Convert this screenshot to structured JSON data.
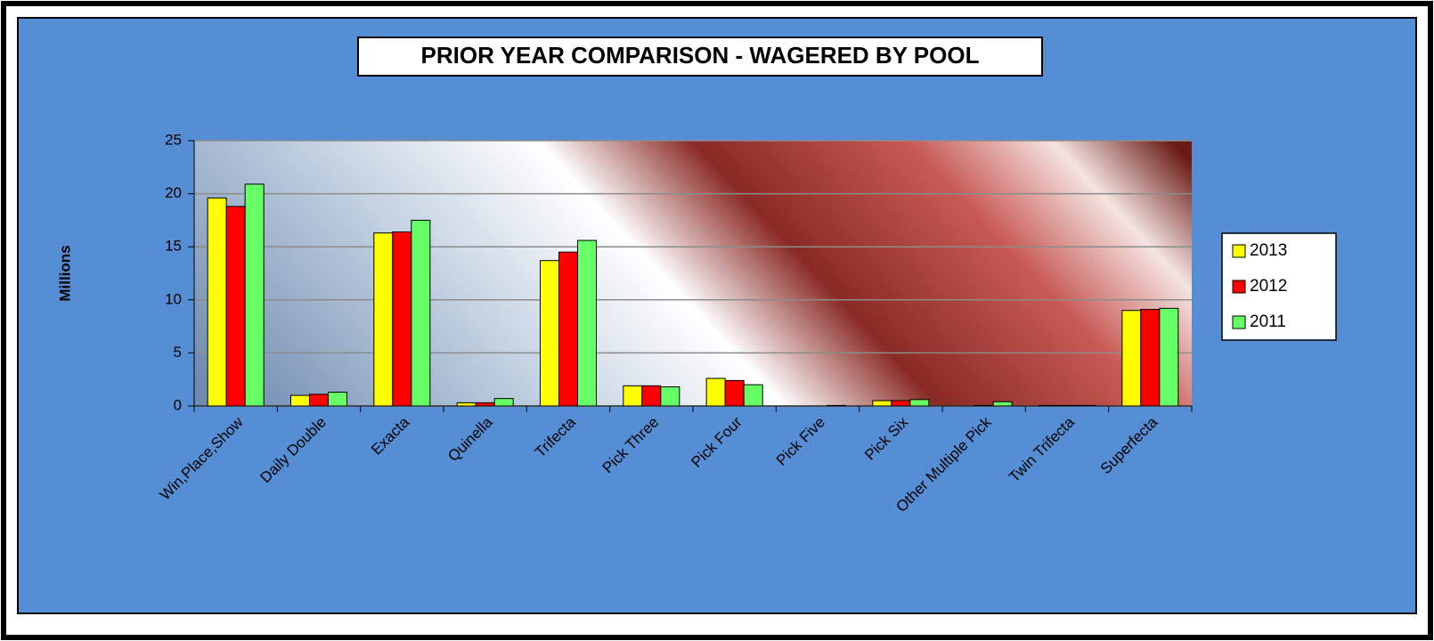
{
  "chart_data": {
    "type": "bar",
    "title": "PRIOR YEAR COMPARISON - WAGERED BY POOL",
    "y_label": "Millions",
    "categories": [
      "Win,Place,Show",
      "Daily Double",
      "Exacta",
      "Quinella",
      "Trifecta",
      "Pick Three",
      "Pick Four",
      "Pick Five",
      "Pick Six",
      "Other Multiple Pick",
      "Twin Trifecta",
      "Superfecta"
    ],
    "series": [
      {
        "name": "2013",
        "color": "#ffff00",
        "values": [
          19.6,
          1.0,
          16.3,
          0.3,
          13.7,
          1.9,
          2.6,
          0,
          0.5,
          0,
          0.05,
          9.0
        ]
      },
      {
        "name": "2012",
        "color": "#ff0000",
        "values": [
          18.8,
          1.1,
          16.4,
          0.3,
          14.5,
          1.9,
          2.4,
          0,
          0.5,
          0.05,
          0.05,
          9.1
        ]
      },
      {
        "name": "2011",
        "color": "#66ff66",
        "values": [
          20.9,
          1.3,
          17.5,
          0.7,
          15.6,
          1.8,
          2.0,
          0.05,
          0.6,
          0.4,
          0.05,
          9.2
        ]
      }
    ],
    "ylim": [
      0,
      25
    ],
    "yticks": [
      0,
      5,
      10,
      15,
      20,
      25
    ],
    "grid": true,
    "legend": "right"
  }
}
